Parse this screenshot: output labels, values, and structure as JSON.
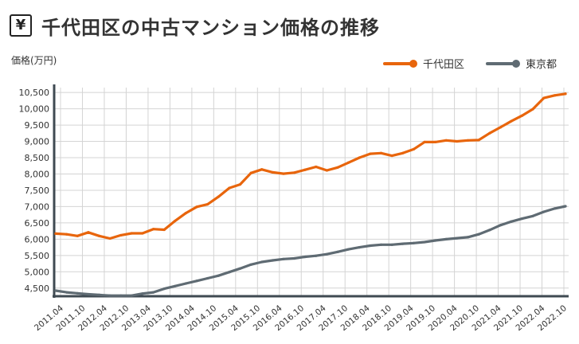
{
  "header": {
    "icon": "yen-icon",
    "icon_glyph": "¥",
    "title": "千代田区の中古マンション価格の推移"
  },
  "chart_data": {
    "type": "line",
    "title": "千代田区の中古マンション価格の推移",
    "ylabel": "価格(万円)",
    "xlabel": "",
    "ylim": [
      4250,
      10650
    ],
    "yticks": [
      4500,
      5000,
      5500,
      6000,
      6500,
      7000,
      7500,
      8000,
      8500,
      9000,
      9500,
      10000,
      10500
    ],
    "ytick_labels": [
      "4,500",
      "5,000",
      "5,500",
      "6,000",
      "6,500",
      "7,000",
      "7,500",
      "8,000",
      "8,500",
      "9,000",
      "9,500",
      "10,000",
      "10,500"
    ],
    "xtick_labels": [
      "2011.04",
      "2011.10",
      "2012.04",
      "2012.10",
      "2013.04",
      "2013.10",
      "2014.04",
      "2014.10",
      "2015.04",
      "2015.10",
      "2016.04",
      "2016.10",
      "2017.04",
      "2017.10",
      "2018.04",
      "2018.10",
      "2019.04",
      "2019.10",
      "2020.04",
      "2020.10",
      "2021.04",
      "2021.10",
      "2022.04",
      "2022.10"
    ],
    "grid": true,
    "legend_position": "top-right",
    "series": [
      {
        "name": "千代田区",
        "color": "#e8650c",
        "values": [
          6170,
          6150,
          6100,
          6210,
          6100,
          6020,
          6120,
          6180,
          6180,
          6310,
          6290,
          6560,
          6800,
          6990,
          7070,
          7300,
          7570,
          7680,
          8030,
          8140,
          8050,
          8010,
          8040,
          8130,
          8220,
          8110,
          8200,
          8350,
          8500,
          8620,
          8640,
          8560,
          8640,
          8760,
          8980,
          8980,
          9030,
          9000,
          9030,
          9040,
          9250,
          9430,
          9620,
          9790,
          9990,
          10330,
          10410,
          10460
        ]
      },
      {
        "name": "東京都",
        "color": "#5f6b73",
        "values": [
          4420,
          4370,
          4340,
          4310,
          4290,
          4270,
          4270,
          4270,
          4330,
          4370,
          4480,
          4560,
          4640,
          4720,
          4800,
          4880,
          4990,
          5100,
          5220,
          5300,
          5350,
          5390,
          5410,
          5460,
          5490,
          5540,
          5610,
          5690,
          5750,
          5800,
          5830,
          5830,
          5860,
          5880,
          5910,
          5960,
          6000,
          6030,
          6060,
          6150,
          6280,
          6430,
          6540,
          6630,
          6710,
          6840,
          6940,
          7010
        ]
      }
    ]
  }
}
